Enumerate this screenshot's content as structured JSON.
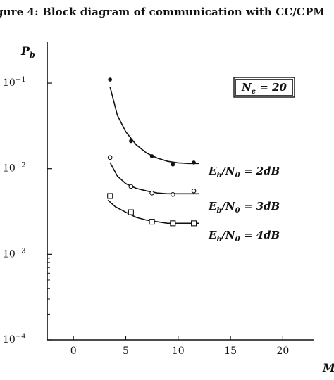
{
  "caption": "gure 4: Block diagram of communication with CC/CPM",
  "chart_data": {
    "type": "line",
    "y_scale": "log",
    "ylim": [
      0.0001,
      0.3
    ],
    "xlim": [
      -2.5,
      23
    ],
    "xlabel": "M",
    "ylabel": "P_b",
    "x_ticks": [
      0,
      5,
      10,
      15,
      20
    ],
    "x_tick_labels": [
      "0",
      "5",
      "10",
      "15",
      "20"
    ],
    "y_ticks": [
      0.1,
      0.01,
      0.001,
      0.0001
    ],
    "y_tick_labels": [
      {
        "base": "10",
        "exp": "−1"
      },
      {
        "base": "10",
        "exp": "−2"
      },
      {
        "base": "10",
        "exp": "−3"
      },
      {
        "base": "10",
        "exp": "−4"
      }
    ],
    "grid": false,
    "annotation": {
      "lhs": "N",
      "sub": "e",
      "rhs": " = 20"
    },
    "series": [
      {
        "label_main": "E",
        "label_sub": "b",
        "label_mid": "/N",
        "label_sub2": "0",
        "label_rhs": " = 2dB",
        "marker": "filled-circle",
        "points": [
          {
            "x": 3.5,
            "y": 0.11
          },
          {
            "x": 5.5,
            "y": 0.021
          },
          {
            "x": 7.5,
            "y": 0.014
          },
          {
            "x": 9.5,
            "y": 0.0112
          },
          {
            "x": 11.5,
            "y": 0.0118
          }
        ],
        "fit": [
          {
            "x": 3.5,
            "y": 0.09
          },
          {
            "x": 4.2,
            "y": 0.042
          },
          {
            "x": 5.0,
            "y": 0.027
          },
          {
            "x": 6.0,
            "y": 0.019
          },
          {
            "x": 7.0,
            "y": 0.0152
          },
          {
            "x": 8.0,
            "y": 0.0133
          },
          {
            "x": 9.0,
            "y": 0.0122
          },
          {
            "x": 10.0,
            "y": 0.0117
          },
          {
            "x": 11.0,
            "y": 0.0115
          },
          {
            "x": 12.0,
            "y": 0.0115
          }
        ]
      },
      {
        "label_main": "E",
        "label_sub": "b",
        "label_mid": "/N",
        "label_sub2": "0",
        "label_rhs": " = 3dB",
        "marker": "open-circle",
        "points": [
          {
            "x": 3.5,
            "y": 0.0135
          },
          {
            "x": 5.5,
            "y": 0.0062
          },
          {
            "x": 7.5,
            "y": 0.0052
          },
          {
            "x": 9.5,
            "y": 0.005
          },
          {
            "x": 11.5,
            "y": 0.0055
          }
        ],
        "fit": [
          {
            "x": 3.5,
            "y": 0.0118
          },
          {
            "x": 4.2,
            "y": 0.0082
          },
          {
            "x": 5.0,
            "y": 0.0067
          },
          {
            "x": 6.0,
            "y": 0.0059
          },
          {
            "x": 7.0,
            "y": 0.0055
          },
          {
            "x": 8.0,
            "y": 0.0052
          },
          {
            "x": 9.0,
            "y": 0.0051
          },
          {
            "x": 10.0,
            "y": 0.0051
          },
          {
            "x": 11.0,
            "y": 0.0051
          },
          {
            "x": 12.0,
            "y": 0.0051
          }
        ]
      },
      {
        "label_main": "E",
        "label_sub": "b",
        "label_mid": "/N",
        "label_sub2": "0",
        "label_rhs": " = 4dB",
        "marker": "open-square",
        "points": [
          {
            "x": 3.5,
            "y": 0.0048
          },
          {
            "x": 5.5,
            "y": 0.0031
          },
          {
            "x": 7.5,
            "y": 0.0024
          },
          {
            "x": 9.5,
            "y": 0.0023
          },
          {
            "x": 11.5,
            "y": 0.0023
          }
        ],
        "fit": [
          {
            "x": 3.3,
            "y": 0.0043
          },
          {
            "x": 4.0,
            "y": 0.0036
          },
          {
            "x": 5.0,
            "y": 0.0031
          },
          {
            "x": 6.0,
            "y": 0.0027
          },
          {
            "x": 7.0,
            "y": 0.0025
          },
          {
            "x": 8.0,
            "y": 0.0024
          },
          {
            "x": 9.0,
            "y": 0.0023
          },
          {
            "x": 10.0,
            "y": 0.0023
          },
          {
            "x": 11.0,
            "y": 0.0023
          },
          {
            "x": 12.0,
            "y": 0.0023
          }
        ]
      }
    ]
  }
}
